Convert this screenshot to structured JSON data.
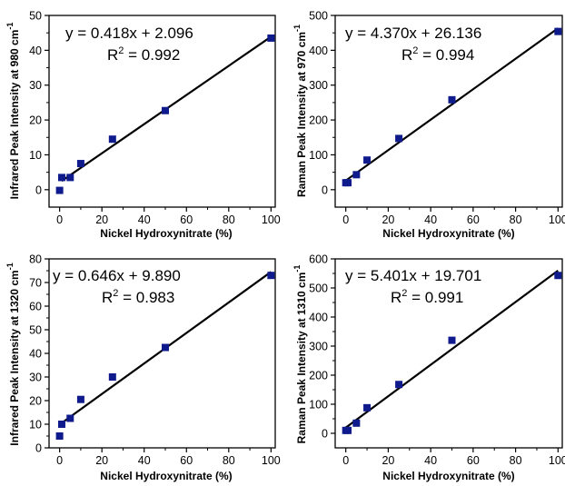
{
  "chart_data": [
    {
      "type": "scatter",
      "panel": "top-left",
      "xlabel": "Nickel Hydroxynitrate (%)",
      "ylabel": "Infrared Peak Intensity at 980 cm",
      "ylabel_sup": "-1",
      "xlim": [
        -5,
        102
      ],
      "ylim": [
        -5,
        50
      ],
      "xticks": [
        0,
        20,
        40,
        60,
        80,
        100
      ],
      "yticks": [
        0,
        10,
        20,
        30,
        40,
        50
      ],
      "series": [
        {
          "x": [
            0,
            1,
            5,
            10,
            25,
            50,
            100
          ],
          "y": [
            -0.2,
            3.5,
            3.5,
            7.5,
            14.5,
            22.7,
            43.5
          ],
          "color": "#0f1b8c"
        }
      ],
      "fit": {
        "slope": 0.418,
        "intercept": 2.096,
        "x_range": [
          1,
          100
        ]
      },
      "equation": "y = 0.418x + 2.096",
      "r2_label": "R",
      "r2_sup": "2",
      "r2_value": " = 0.992"
    },
    {
      "type": "scatter",
      "panel": "top-right",
      "xlabel": "Nickel Hydroxynitrate (%)",
      "ylabel": "Raman Peak Intensity at 970 cm",
      "ylabel_sup": "-1",
      "xlim": [
        -5,
        102
      ],
      "ylim": [
        -50,
        500
      ],
      "xticks": [
        0,
        20,
        40,
        60,
        80,
        100
      ],
      "yticks": [
        0,
        100,
        200,
        300,
        400,
        500
      ],
      "series": [
        {
          "x": [
            0,
            1,
            5,
            10,
            25,
            50,
            100
          ],
          "y": [
            20,
            20,
            43,
            85,
            147,
            258,
            454
          ],
          "color": "#0f1b8c"
        }
      ],
      "fit": {
        "slope": 4.37,
        "intercept": 26.136,
        "x_range": [
          0,
          100
        ]
      },
      "equation": "y = 4.370x + 26.136",
      "r2_label": "R",
      "r2_sup": "2",
      "r2_value": " = 0.994"
    },
    {
      "type": "scatter",
      "panel": "bottom-left",
      "xlabel": "Nickel Hydroxynitrate (%)",
      "ylabel": "Infrared Peak Intensity at 1320 cm",
      "ylabel_sup": "-1",
      "xlim": [
        -5,
        102
      ],
      "ylim": [
        0,
        80
      ],
      "xticks": [
        0,
        20,
        40,
        60,
        80,
        100
      ],
      "yticks": [
        0,
        10,
        20,
        30,
        40,
        50,
        60,
        70,
        80
      ],
      "series": [
        {
          "x": [
            0,
            1,
            5,
            10,
            25,
            50,
            100
          ],
          "y": [
            5,
            10,
            12.5,
            20.5,
            30,
            42.5,
            73
          ],
          "color": "#0f1b8c"
        }
      ],
      "fit": {
        "slope": 0.646,
        "intercept": 9.89,
        "x_range": [
          1,
          100
        ]
      },
      "equation": "y = 0.646x + 9.890",
      "r2_label": "R",
      "r2_sup": "2",
      "r2_value": " = 0.983"
    },
    {
      "type": "scatter",
      "panel": "bottom-right",
      "xlabel": "Nickel Hydroxynitrate (%)",
      "ylabel": "Raman Peak Intensity at 1310 cm",
      "ylabel_sup": "-1",
      "xlim": [
        -5,
        102
      ],
      "ylim": [
        -50,
        600
      ],
      "xticks": [
        0,
        20,
        40,
        60,
        80,
        100
      ],
      "yticks": [
        0,
        100,
        200,
        300,
        400,
        500,
        600
      ],
      "series": [
        {
          "x": [
            0,
            1,
            5,
            10,
            25,
            50,
            100
          ],
          "y": [
            10,
            10,
            35,
            88,
            168,
            320,
            543
          ],
          "color": "#0f1b8c"
        }
      ],
      "fit": {
        "slope": 5.401,
        "intercept": 19.701,
        "x_range": [
          0,
          100
        ]
      },
      "equation": "y = 5.401x + 19.701",
      "r2_label": "R",
      "r2_sup": "2",
      "r2_value": " = 0.991"
    }
  ]
}
